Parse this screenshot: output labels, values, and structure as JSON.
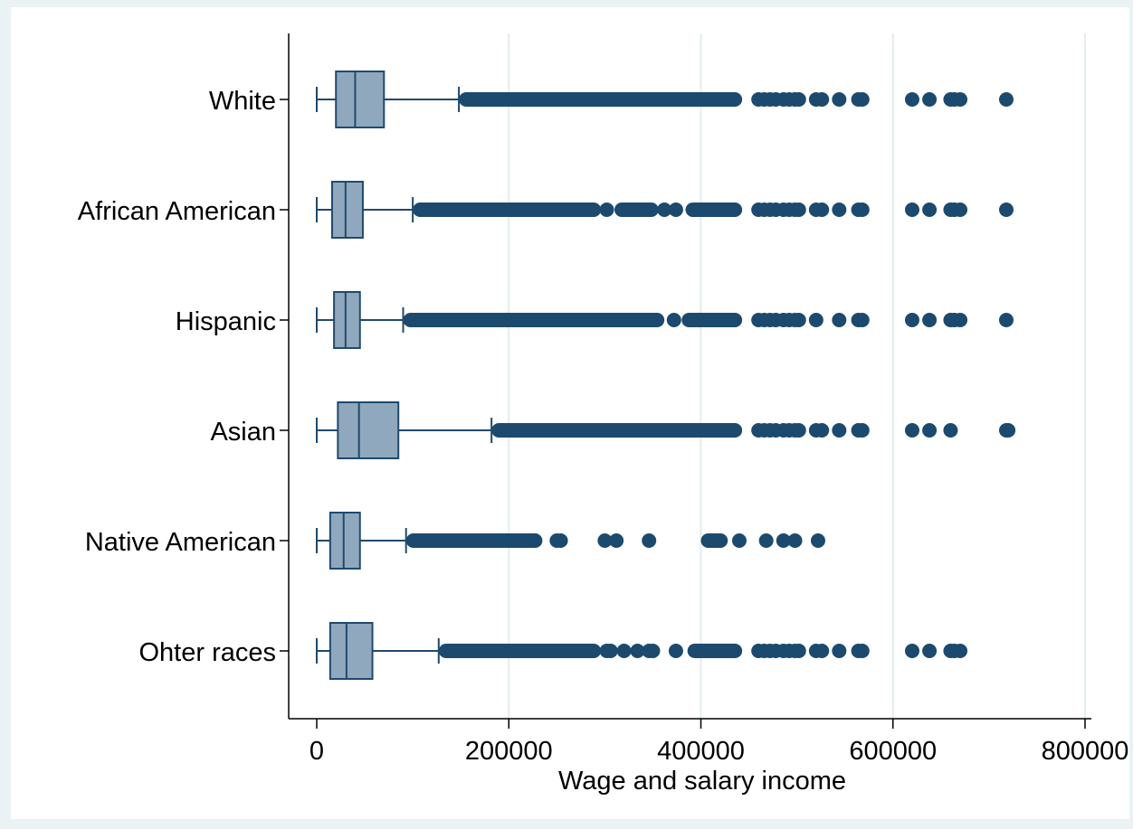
{
  "chart_data": {
    "type": "box",
    "orientation": "horizontal",
    "xlabel": "Wage and salary income",
    "xlim": [
      -30000,
      830000
    ],
    "xticks": [
      0,
      200000,
      400000,
      600000,
      800000
    ],
    "xtick_labels": [
      "0",
      "200000",
      "400000",
      "600000",
      "800000"
    ],
    "grid": "vertical",
    "colors": {
      "outer_background": "#eaf2f3",
      "plot_background": "#ffffff",
      "gridline": "#e3ecee",
      "box_fill": "#90a8bd",
      "box_stroke": "#1f4a6e",
      "outlier": "#1c4a6e"
    },
    "categories": [
      "White",
      "African American",
      "Hispanic",
      "Asian",
      "Native American",
      "Ohter races"
    ],
    "boxes": [
      {
        "category": "White",
        "whisker_low": 0,
        "q1": 20000,
        "median": 40000,
        "q3": 70000,
        "whisker_high": 148000,
        "outlier_bands": [
          [
            148000,
            443000
          ]
        ],
        "outliers": [
          460000,
          466000,
          472000,
          478000,
          486000,
          492000,
          498000,
          502000,
          520000,
          526000,
          544000,
          564000,
          568000,
          620000,
          638000,
          660000,
          664000,
          670000,
          718000
        ]
      },
      {
        "category": "African American",
        "whisker_low": 0,
        "q1": 16000,
        "median": 30000,
        "q3": 48000,
        "whisker_high": 100000,
        "outlier_bands": [
          [
            100000,
            296000
          ],
          [
            310000,
            356000
          ],
          [
            384000,
            443000
          ]
        ],
        "outliers": [
          302000,
          362000,
          374000,
          460000,
          466000,
          472000,
          478000,
          486000,
          492000,
          498000,
          502000,
          520000,
          526000,
          544000,
          564000,
          568000,
          620000,
          638000,
          660000,
          664000,
          670000,
          718000
        ]
      },
      {
        "category": "Hispanic",
        "whisker_low": 0,
        "q1": 18000,
        "median": 30000,
        "q3": 45000,
        "whisker_high": 90000,
        "outlier_bands": [
          [
            90000,
            362000
          ],
          [
            380000,
            443000
          ]
        ],
        "outliers": [
          372000,
          460000,
          466000,
          472000,
          478000,
          486000,
          492000,
          498000,
          502000,
          520000,
          544000,
          564000,
          568000,
          620000,
          638000,
          660000,
          664000,
          670000,
          718000
        ]
      },
      {
        "category": "Asian",
        "whisker_low": 0,
        "q1": 22000,
        "median": 44000,
        "q3": 85000,
        "whisker_high": 182000,
        "outlier_bands": [
          [
            182000,
            443000
          ]
        ],
        "outliers": [
          460000,
          466000,
          472000,
          478000,
          486000,
          492000,
          498000,
          502000,
          520000,
          526000,
          544000,
          564000,
          568000,
          620000,
          638000,
          660000,
          718000,
          720000
        ]
      },
      {
        "category": "Native American",
        "whisker_low": 0,
        "q1": 14000,
        "median": 28000,
        "q3": 45000,
        "whisker_high": 93000,
        "outlier_bands": [
          [
            93000,
            235000
          ],
          [
            400000,
            428000
          ]
        ],
        "outliers": [
          250000,
          254000,
          300000,
          312000,
          346000,
          440000,
          468000,
          486000,
          498000,
          522000
        ]
      },
      {
        "category": "Ohter races",
        "whisker_low": 0,
        "q1": 14000,
        "median": 31000,
        "q3": 58000,
        "whisker_high": 127000,
        "outlier_bands": [
          [
            127000,
            296000
          ],
          [
            386000,
            443000
          ]
        ],
        "outliers": [
          302000,
          306000,
          320000,
          334000,
          346000,
          350000,
          374000,
          460000,
          466000,
          472000,
          478000,
          486000,
          492000,
          498000,
          502000,
          520000,
          526000,
          544000,
          564000,
          568000,
          620000,
          638000,
          660000,
          664000,
          670000
        ]
      }
    ]
  }
}
